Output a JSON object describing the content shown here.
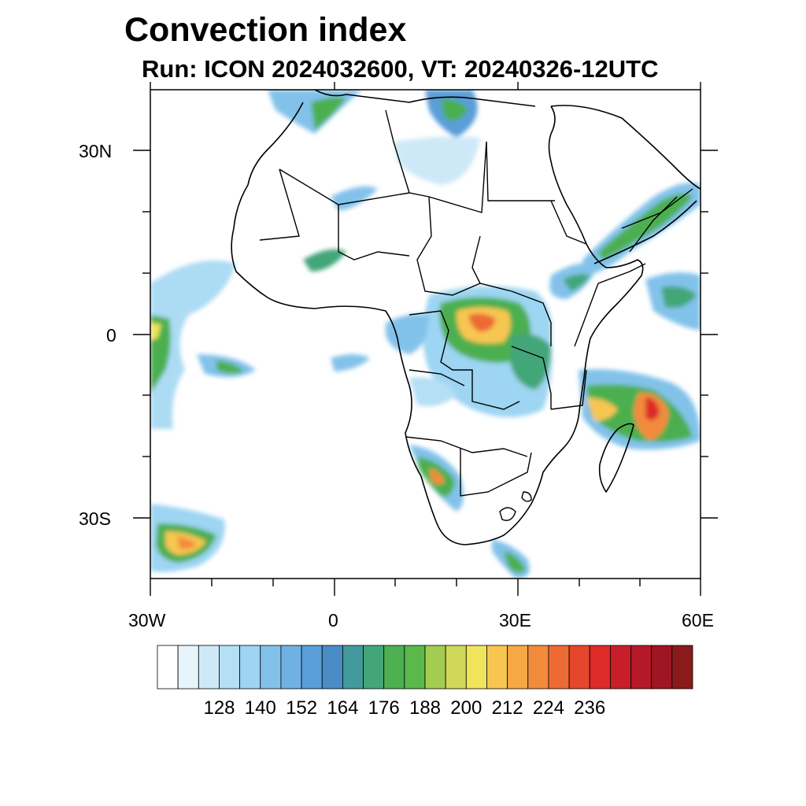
{
  "title": "Convection index",
  "subtitle": "Run: ICON 2024032600,  VT: 20240326-12UTC",
  "axes": {
    "lat_labels": [
      "30N",
      "0",
      "30S"
    ],
    "lon_labels": [
      "30W",
      "0",
      "30E",
      "60E"
    ]
  },
  "colorbar": {
    "labels": [
      "128",
      "140",
      "152",
      "164",
      "176",
      "188",
      "200",
      "212",
      "224",
      "236"
    ],
    "colors": [
      "#ffffff",
      "#e8f4fb",
      "#cde9f7",
      "#b5dff4",
      "#9dd5f2",
      "#82c2ea",
      "#6fb1e3",
      "#5a9ed8",
      "#4a8cc6",
      "#44999d",
      "#43a679",
      "#4caf50",
      "#5bb84a",
      "#a3cd50",
      "#cfd85a",
      "#f0e45c",
      "#f7c651",
      "#f5a843",
      "#f28b3c",
      "#ee6a34",
      "#e6462b",
      "#dd2b2a",
      "#c81e2a",
      "#b51828",
      "#9e1523",
      "#8b1a1a"
    ]
  },
  "map_features": {
    "coastline": "coastline-outline",
    "borders": "country-borders",
    "field": "convection-index-field"
  }
}
